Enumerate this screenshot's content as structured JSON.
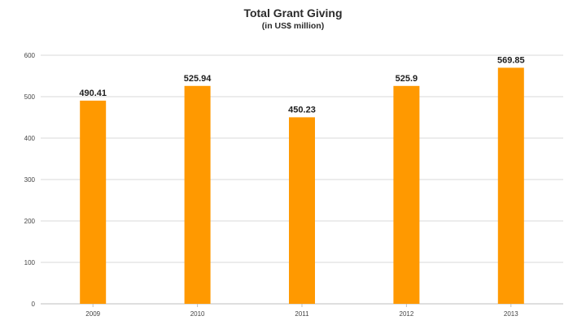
{
  "chart_data": {
    "type": "bar",
    "title": "Total Grant Giving",
    "subtitle": "(in US$ million)",
    "categories": [
      "2009",
      "2010",
      "2011",
      "2012",
      "2013"
    ],
    "values": [
      490.41,
      525.94,
      450.23,
      525.9,
      569.85
    ],
    "value_labels": [
      "490.41",
      "525.94",
      "450.23",
      "525.9",
      "569.85"
    ],
    "xlabel": "",
    "ylabel": "",
    "ylim": [
      0,
      600
    ],
    "yticks": [
      0,
      100,
      200,
      300,
      400,
      500,
      600
    ],
    "grid": true,
    "legend": "none",
    "bar_color": "#FF9900",
    "grid_color": "#d9d9d9"
  }
}
